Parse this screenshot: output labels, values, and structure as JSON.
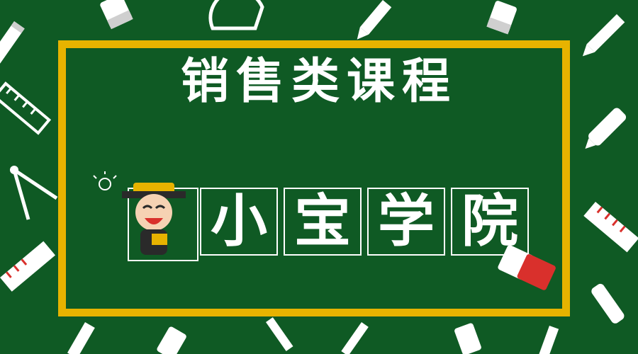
{
  "banner": {
    "title": "销售类课程",
    "name_chars": [
      "小",
      "宝",
      "学",
      "院"
    ]
  },
  "colors": {
    "background": "#0f5a24",
    "frame": "#e7b300",
    "text": "#ffffff",
    "eraser": "#d9302c"
  },
  "icons": [
    "pencil-icon",
    "ruler-icon",
    "eraser-icon",
    "protractor-icon",
    "compass-icon",
    "lightbulb-icon",
    "mascot-icon"
  ]
}
